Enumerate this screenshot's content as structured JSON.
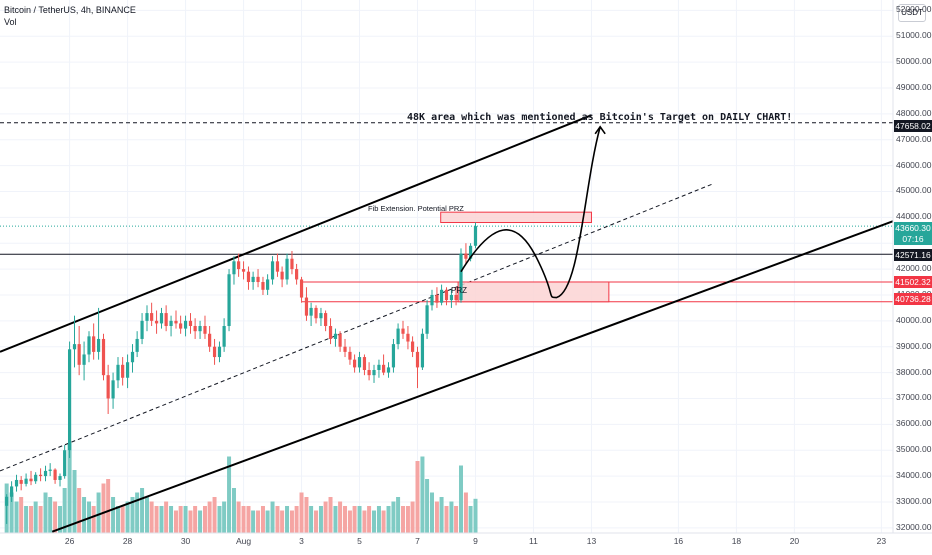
{
  "header": {
    "title": "Bitcoin / TetherUS, 4h, BINANCE",
    "vol_label": "Vol"
  },
  "currency": "USDT",
  "price_ticks": [
    "52000.00",
    "51000.00",
    "50000.00",
    "49000.00",
    "48000.00",
    "47000.00",
    "46000.00",
    "45000.00",
    "44000.00",
    "43000.00",
    "42000.00",
    "41000.00",
    "40000.00",
    "39000.00",
    "38000.00",
    "37000.00",
    "36000.00",
    "35000.00",
    "34000.00",
    "33000.00",
    "32000.00"
  ],
  "date_ticks": [
    "26",
    "28",
    "30",
    "Aug",
    "3",
    "5",
    "7",
    "9",
    "11",
    "13",
    "16",
    "18",
    "20",
    "23"
  ],
  "price_labels": {
    "target": "47658.02",
    "last": "43660.30",
    "countdown": "07:16",
    "black_line": "42571.16",
    "prz_top": "41502.32",
    "prz_bottom": "40736.28"
  },
  "annotations": {
    "target_text": "48K area which was mentioned as Bitcoin's Target on DAILY CHART!",
    "fib_text": "Fib Extension. Potential PRZ",
    "prz_text": "PRZ"
  },
  "colors": {
    "up": "#26a69a",
    "down": "#ef5350",
    "up_vol": "#7fcbc4",
    "down_vol": "#f5a5a3",
    "prz_fill": "#fbd3d3",
    "prz_line": "#f23645"
  },
  "chart_data": {
    "type": "candlestick",
    "title": "Bitcoin / TetherUS, 4h, BINANCE",
    "ylim": [
      31800,
      52400
    ],
    "y_axis_side": "right",
    "x_range_days": [
      23.6,
      54.4
    ],
    "candles": [
      {
        "t": 23.83,
        "o": 32850,
        "h": 33300,
        "l": 32150,
        "c": 33200
      },
      {
        "t": 24.0,
        "o": 33200,
        "h": 33800,
        "l": 33000,
        "c": 33600
      },
      {
        "t": 24.17,
        "o": 33600,
        "h": 34050,
        "l": 33400,
        "c": 33850
      },
      {
        "t": 24.33,
        "o": 33850,
        "h": 34000,
        "l": 33450,
        "c": 33700
      },
      {
        "t": 24.5,
        "o": 33700,
        "h": 34100,
        "l": 33600,
        "c": 33900
      },
      {
        "t": 24.67,
        "o": 33900,
        "h": 34200,
        "l": 33650,
        "c": 33800
      },
      {
        "t": 24.83,
        "o": 33800,
        "h": 34150,
        "l": 33700,
        "c": 34050
      },
      {
        "t": 25.0,
        "o": 34050,
        "h": 34300,
        "l": 33800,
        "c": 34000
      },
      {
        "t": 25.17,
        "o": 34000,
        "h": 34400,
        "l": 33800,
        "c": 34200
      },
      {
        "t": 25.33,
        "o": 34200,
        "h": 34500,
        "l": 34000,
        "c": 34250
      },
      {
        "t": 25.5,
        "o": 34250,
        "h": 34300,
        "l": 33700,
        "c": 33850
      },
      {
        "t": 25.67,
        "o": 33850,
        "h": 34100,
        "l": 33600,
        "c": 34000
      },
      {
        "t": 25.83,
        "o": 34000,
        "h": 35200,
        "l": 33900,
        "c": 35000
      },
      {
        "t": 26.0,
        "o": 35000,
        "h": 39200,
        "l": 34700,
        "c": 38900
      },
      {
        "t": 26.17,
        "o": 38900,
        "h": 40200,
        "l": 38200,
        "c": 39100
      },
      {
        "t": 26.33,
        "o": 39100,
        "h": 39800,
        "l": 37900,
        "c": 38300
      },
      {
        "t": 26.5,
        "o": 38300,
        "h": 39200,
        "l": 37700,
        "c": 38700
      },
      {
        "t": 26.67,
        "o": 38700,
        "h": 39600,
        "l": 38400,
        "c": 39400
      },
      {
        "t": 26.83,
        "o": 39400,
        "h": 39900,
        "l": 38500,
        "c": 38800
      },
      {
        "t": 27.0,
        "o": 38800,
        "h": 40500,
        "l": 38500,
        "c": 39300
      },
      {
        "t": 27.17,
        "o": 39300,
        "h": 39500,
        "l": 37700,
        "c": 37900
      },
      {
        "t": 27.33,
        "o": 37900,
        "h": 38300,
        "l": 36400,
        "c": 37000
      },
      {
        "t": 27.5,
        "o": 37000,
        "h": 38000,
        "l": 36600,
        "c": 37700
      },
      {
        "t": 27.67,
        "o": 37700,
        "h": 38600,
        "l": 37400,
        "c": 38300
      },
      {
        "t": 27.83,
        "o": 38300,
        "h": 38600,
        "l": 37500,
        "c": 37800
      },
      {
        "t": 28.0,
        "o": 37800,
        "h": 38700,
        "l": 37400,
        "c": 38400
      },
      {
        "t": 28.17,
        "o": 38400,
        "h": 39100,
        "l": 38000,
        "c": 38800
      },
      {
        "t": 28.33,
        "o": 38800,
        "h": 39600,
        "l": 38600,
        "c": 39300
      },
      {
        "t": 28.5,
        "o": 39300,
        "h": 40300,
        "l": 39100,
        "c": 40000
      },
      {
        "t": 28.67,
        "o": 40000,
        "h": 40600,
        "l": 39600,
        "c": 40300
      },
      {
        "t": 28.83,
        "o": 40300,
        "h": 40700,
        "l": 39800,
        "c": 40000
      },
      {
        "t": 29.0,
        "o": 40000,
        "h": 40400,
        "l": 39500,
        "c": 39900
      },
      {
        "t": 29.17,
        "o": 39900,
        "h": 40500,
        "l": 39700,
        "c": 40300
      },
      {
        "t": 29.33,
        "o": 40300,
        "h": 40600,
        "l": 39600,
        "c": 39800
      },
      {
        "t": 29.5,
        "o": 39800,
        "h": 40200,
        "l": 39400,
        "c": 40000
      },
      {
        "t": 29.67,
        "o": 40000,
        "h": 40400,
        "l": 39700,
        "c": 39900
      },
      {
        "t": 29.83,
        "o": 39900,
        "h": 40200,
        "l": 39500,
        "c": 39700
      },
      {
        "t": 30.0,
        "o": 39700,
        "h": 40200,
        "l": 39400,
        "c": 40000
      },
      {
        "t": 30.17,
        "o": 40000,
        "h": 40300,
        "l": 39500,
        "c": 39800
      },
      {
        "t": 30.33,
        "o": 39800,
        "h": 40100,
        "l": 39300,
        "c": 39600
      },
      {
        "t": 30.5,
        "o": 39600,
        "h": 40000,
        "l": 39300,
        "c": 39800
      },
      {
        "t": 30.67,
        "o": 39800,
        "h": 40200,
        "l": 39300,
        "c": 39500
      },
      {
        "t": 30.83,
        "o": 39500,
        "h": 39800,
        "l": 38800,
        "c": 39000
      },
      {
        "t": 31.0,
        "o": 39000,
        "h": 39300,
        "l": 38300,
        "c": 38600
      },
      {
        "t": 31.17,
        "o": 38600,
        "h": 39200,
        "l": 38400,
        "c": 39000
      },
      {
        "t": 31.33,
        "o": 39000,
        "h": 40100,
        "l": 38800,
        "c": 39800
      },
      {
        "t": 31.5,
        "o": 39800,
        "h": 42000,
        "l": 39600,
        "c": 41800
      },
      {
        "t": 31.67,
        "o": 41800,
        "h": 42500,
        "l": 41400,
        "c": 42300
      },
      {
        "t": 31.83,
        "o": 42300,
        "h": 42600,
        "l": 41700,
        "c": 42000
      },
      {
        "t": 32.0,
        "o": 42000,
        "h": 42300,
        "l": 41600,
        "c": 41900
      },
      {
        "t": 32.17,
        "o": 41900,
        "h": 42100,
        "l": 41200,
        "c": 41500
      },
      {
        "t": 32.33,
        "o": 41500,
        "h": 41900,
        "l": 41200,
        "c": 41700
      },
      {
        "t": 32.5,
        "o": 41700,
        "h": 42000,
        "l": 41300,
        "c": 41500
      },
      {
        "t": 32.67,
        "o": 41500,
        "h": 41700,
        "l": 41000,
        "c": 41200
      },
      {
        "t": 32.83,
        "o": 41200,
        "h": 41800,
        "l": 41000,
        "c": 41600
      },
      {
        "t": 33.0,
        "o": 41600,
        "h": 42500,
        "l": 41400,
        "c": 42300
      },
      {
        "t": 33.17,
        "o": 42300,
        "h": 42600,
        "l": 41700,
        "c": 41900
      },
      {
        "t": 33.33,
        "o": 41900,
        "h": 42100,
        "l": 41300,
        "c": 41600
      },
      {
        "t": 33.5,
        "o": 41600,
        "h": 42600,
        "l": 41400,
        "c": 42400
      },
      {
        "t": 33.67,
        "o": 42400,
        "h": 42700,
        "l": 41800,
        "c": 42000
      },
      {
        "t": 33.83,
        "o": 42000,
        "h": 42200,
        "l": 41400,
        "c": 41600
      },
      {
        "t": 34.0,
        "o": 41600,
        "h": 41700,
        "l": 40700,
        "c": 40900
      },
      {
        "t": 34.17,
        "o": 40900,
        "h": 41300,
        "l": 40000,
        "c": 40200
      },
      {
        "t": 34.33,
        "o": 40200,
        "h": 40700,
        "l": 39800,
        "c": 40500
      },
      {
        "t": 34.5,
        "o": 40500,
        "h": 40600,
        "l": 39900,
        "c": 40100
      },
      {
        "t": 34.67,
        "o": 40100,
        "h": 40500,
        "l": 39800,
        "c": 40300
      },
      {
        "t": 34.83,
        "o": 40300,
        "h": 40400,
        "l": 39600,
        "c": 39800
      },
      {
        "t": 35.0,
        "o": 39800,
        "h": 40100,
        "l": 39100,
        "c": 39300
      },
      {
        "t": 35.17,
        "o": 39300,
        "h": 39700,
        "l": 39000,
        "c": 39500
      },
      {
        "t": 35.33,
        "o": 39500,
        "h": 39600,
        "l": 38800,
        "c": 39000
      },
      {
        "t": 35.5,
        "o": 39000,
        "h": 39300,
        "l": 38600,
        "c": 38800
      },
      {
        "t": 35.67,
        "o": 38800,
        "h": 39000,
        "l": 38300,
        "c": 38500
      },
      {
        "t": 35.83,
        "o": 38500,
        "h": 38700,
        "l": 38000,
        "c": 38200
      },
      {
        "t": 36.0,
        "o": 38200,
        "h": 38800,
        "l": 38000,
        "c": 38600
      },
      {
        "t": 36.17,
        "o": 38600,
        "h": 38700,
        "l": 37900,
        "c": 38100
      },
      {
        "t": 36.33,
        "o": 38100,
        "h": 38400,
        "l": 37700,
        "c": 37900
      },
      {
        "t": 36.5,
        "o": 37900,
        "h": 38300,
        "l": 37600,
        "c": 38100
      },
      {
        "t": 36.67,
        "o": 38100,
        "h": 38500,
        "l": 37800,
        "c": 38300
      },
      {
        "t": 36.83,
        "o": 38300,
        "h": 38700,
        "l": 37900,
        "c": 38000
      },
      {
        "t": 37.0,
        "o": 38000,
        "h": 38400,
        "l": 37800,
        "c": 38200
      },
      {
        "t": 37.17,
        "o": 38200,
        "h": 39300,
        "l": 38000,
        "c": 39100
      },
      {
        "t": 37.33,
        "o": 39100,
        "h": 39900,
        "l": 38900,
        "c": 39700
      },
      {
        "t": 37.5,
        "o": 39700,
        "h": 40000,
        "l": 39300,
        "c": 39500
      },
      {
        "t": 37.67,
        "o": 39500,
        "h": 39800,
        "l": 38900,
        "c": 39200
      },
      {
        "t": 37.83,
        "o": 39200,
        "h": 39400,
        "l": 38600,
        "c": 38800
      },
      {
        "t": 38.0,
        "o": 38800,
        "h": 39000,
        "l": 37400,
        "c": 38200
      },
      {
        "t": 38.17,
        "o": 38200,
        "h": 39700,
        "l": 38100,
        "c": 39500
      },
      {
        "t": 38.33,
        "o": 39500,
        "h": 40800,
        "l": 39300,
        "c": 40600
      },
      {
        "t": 38.5,
        "o": 40600,
        "h": 41200,
        "l": 40400,
        "c": 41000
      },
      {
        "t": 38.67,
        "o": 41000,
        "h": 41300,
        "l": 40500,
        "c": 40700
      },
      {
        "t": 38.83,
        "o": 40700,
        "h": 41400,
        "l": 40600,
        "c": 41200
      },
      {
        "t": 39.0,
        "o": 41200,
        "h": 41300,
        "l": 40600,
        "c": 40800
      },
      {
        "t": 39.17,
        "o": 40800,
        "h": 41200,
        "l": 40500,
        "c": 41000
      },
      {
        "t": 39.33,
        "o": 41000,
        "h": 41300,
        "l": 40600,
        "c": 40800
      },
      {
        "t": 39.5,
        "o": 40800,
        "h": 42800,
        "l": 40700,
        "c": 42600
      },
      {
        "t": 39.67,
        "o": 42600,
        "h": 43000,
        "l": 42200,
        "c": 42400
      },
      {
        "t": 39.83,
        "o": 42400,
        "h": 43000,
        "l": 42300,
        "c": 42900
      },
      {
        "t": 40.0,
        "o": 42900,
        "h": 43800,
        "l": 42800,
        "c": 43660
      }
    ],
    "volume_bars": [
      {
        "t": 23.83,
        "v": 0.55
      },
      {
        "t": 24.0,
        "v": 0.45
      },
      {
        "t": 24.17,
        "v": 0.35
      },
      {
        "t": 24.33,
        "v": 0.4
      },
      {
        "t": 24.5,
        "v": 0.3
      },
      {
        "t": 24.67,
        "v": 0.3
      },
      {
        "t": 24.83,
        "v": 0.35
      },
      {
        "t": 25.0,
        "v": 0.3
      },
      {
        "t": 25.17,
        "v": 0.45
      },
      {
        "t": 25.33,
        "v": 0.4
      },
      {
        "t": 25.5,
        "v": 0.35
      },
      {
        "t": 25.67,
        "v": 0.3
      },
      {
        "t": 25.83,
        "v": 0.5
      },
      {
        "t": 26.0,
        "v": 1.0
      },
      {
        "t": 26.17,
        "v": 0.7
      },
      {
        "t": 26.33,
        "v": 0.5
      },
      {
        "t": 26.5,
        "v": 0.4
      },
      {
        "t": 26.67,
        "v": 0.35
      },
      {
        "t": 26.83,
        "v": 0.3
      },
      {
        "t": 27.0,
        "v": 0.45
      },
      {
        "t": 27.17,
        "v": 0.55
      },
      {
        "t": 27.33,
        "v": 0.6
      },
      {
        "t": 27.5,
        "v": 0.4
      },
      {
        "t": 27.67,
        "v": 0.3
      },
      {
        "t": 27.83,
        "v": 0.3
      },
      {
        "t": 28.0,
        "v": 0.35
      },
      {
        "t": 28.17,
        "v": 0.4
      },
      {
        "t": 28.33,
        "v": 0.45
      },
      {
        "t": 28.5,
        "v": 0.5
      },
      {
        "t": 28.67,
        "v": 0.4
      },
      {
        "t": 28.83,
        "v": 0.35
      },
      {
        "t": 29.0,
        "v": 0.3
      },
      {
        "t": 29.17,
        "v": 0.3
      },
      {
        "t": 29.33,
        "v": 0.35
      },
      {
        "t": 29.5,
        "v": 0.3
      },
      {
        "t": 29.67,
        "v": 0.25
      },
      {
        "t": 29.83,
        "v": 0.3
      },
      {
        "t": 30.0,
        "v": 0.3
      },
      {
        "t": 30.17,
        "v": 0.25
      },
      {
        "t": 30.33,
        "v": 0.3
      },
      {
        "t": 30.5,
        "v": 0.25
      },
      {
        "t": 30.67,
        "v": 0.3
      },
      {
        "t": 30.83,
        "v": 0.35
      },
      {
        "t": 31.0,
        "v": 0.4
      },
      {
        "t": 31.17,
        "v": 0.3
      },
      {
        "t": 31.33,
        "v": 0.35
      },
      {
        "t": 31.5,
        "v": 0.85
      },
      {
        "t": 31.67,
        "v": 0.5
      },
      {
        "t": 31.83,
        "v": 0.35
      },
      {
        "t": 32.0,
        "v": 0.3
      },
      {
        "t": 32.17,
        "v": 0.3
      },
      {
        "t": 32.33,
        "v": 0.25
      },
      {
        "t": 32.5,
        "v": 0.25
      },
      {
        "t": 32.67,
        "v": 0.3
      },
      {
        "t": 32.83,
        "v": 0.25
      },
      {
        "t": 33.0,
        "v": 0.35
      },
      {
        "t": 33.17,
        "v": 0.3
      },
      {
        "t": 33.33,
        "v": 0.25
      },
      {
        "t": 33.5,
        "v": 0.3
      },
      {
        "t": 33.67,
        "v": 0.25
      },
      {
        "t": 33.83,
        "v": 0.3
      },
      {
        "t": 34.0,
        "v": 0.45
      },
      {
        "t": 34.17,
        "v": 0.4
      },
      {
        "t": 34.33,
        "v": 0.3
      },
      {
        "t": 34.5,
        "v": 0.25
      },
      {
        "t": 34.67,
        "v": 0.3
      },
      {
        "t": 34.83,
        "v": 0.35
      },
      {
        "t": 35.0,
        "v": 0.4
      },
      {
        "t": 35.17,
        "v": 0.3
      },
      {
        "t": 35.33,
        "v": 0.35
      },
      {
        "t": 35.5,
        "v": 0.3
      },
      {
        "t": 35.67,
        "v": 0.25
      },
      {
        "t": 35.83,
        "v": 0.3
      },
      {
        "t": 36.0,
        "v": 0.3
      },
      {
        "t": 36.17,
        "v": 0.25
      },
      {
        "t": 36.33,
        "v": 0.3
      },
      {
        "t": 36.5,
        "v": 0.25
      },
      {
        "t": 36.67,
        "v": 0.3
      },
      {
        "t": 36.83,
        "v": 0.25
      },
      {
        "t": 37.0,
        "v": 0.3
      },
      {
        "t": 37.17,
        "v": 0.35
      },
      {
        "t": 37.33,
        "v": 0.4
      },
      {
        "t": 37.5,
        "v": 0.3
      },
      {
        "t": 37.67,
        "v": 0.3
      },
      {
        "t": 37.83,
        "v": 0.35
      },
      {
        "t": 38.0,
        "v": 0.8
      },
      {
        "t": 38.17,
        "v": 0.85
      },
      {
        "t": 38.33,
        "v": 0.6
      },
      {
        "t": 38.5,
        "v": 0.45
      },
      {
        "t": 38.67,
        "v": 0.35
      },
      {
        "t": 38.83,
        "v": 0.4
      },
      {
        "t": 39.0,
        "v": 0.3
      },
      {
        "t": 39.17,
        "v": 0.35
      },
      {
        "t": 39.33,
        "v": 0.3
      },
      {
        "t": 39.5,
        "v": 0.75
      },
      {
        "t": 39.67,
        "v": 0.45
      },
      {
        "t": 39.83,
        "v": 0.3
      },
      {
        "t": 40.0,
        "v": 0.38
      }
    ],
    "horizontal_levels": {
      "target_dashed": 47658.02,
      "black_line": 42571.16,
      "prz_top": 41502.32,
      "prz_bottom": 40736.28,
      "last_price_dotted": 43660.3
    },
    "channel": {
      "upper": [
        {
          "t": 23.6,
          "p": 38800
        },
        {
          "t": 44.0,
          "p": 47950
        }
      ],
      "lower": [
        {
          "t": 25.4,
          "p": 31850
        },
        {
          "t": 54.4,
          "p": 43850
        }
      ],
      "middle_dashed": [
        {
          "t": 23.6,
          "p": 34200
        },
        {
          "t": 48.2,
          "p": 45300
        }
      ]
    },
    "zones": [
      {
        "label": "Fib Extension. Potential PRZ",
        "t0": 38.8,
        "t1": 44.0,
        "p0": 43800,
        "p1": 44200
      },
      {
        "label": "PRZ",
        "t0": 39.4,
        "t1": 44.6,
        "p0": 40736.28,
        "p1": 41502.32
      }
    ],
    "projection_path": [
      {
        "t": 39.5,
        "p": 41900
      },
      {
        "t": 40.6,
        "p": 43900
      },
      {
        "t": 41.4,
        "p": 44000
      },
      {
        "t": 42.8,
        "p": 40900
      },
      {
        "t": 43.6,
        "p": 41500
      },
      {
        "t": 44.3,
        "p": 47500
      }
    ]
  }
}
